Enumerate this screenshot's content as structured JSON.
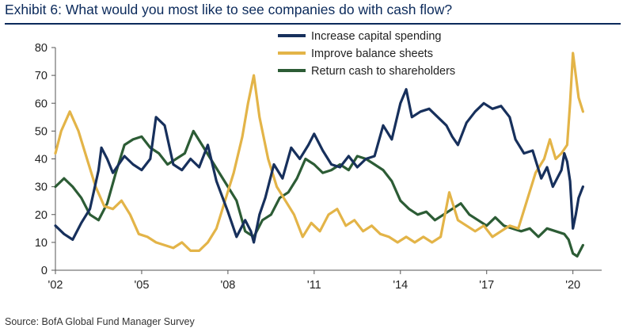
{
  "header": {
    "title": "Exhibit 6: What would you most like to see companies do with cash flow?"
  },
  "footer": {
    "source": "Source: BofA Global Fund Manager Survey"
  },
  "chart_data": {
    "type": "line",
    "title": "Exhibit 6: What would you most like to see companies do with cash flow?",
    "xlabel": "",
    "ylabel": "",
    "xlim": [
      2002.0,
      2021.0
    ],
    "ylim": [
      0,
      80
    ],
    "x_ticks": [
      "'02",
      "'05",
      "'08",
      "'11",
      "'14",
      "'17",
      "'20"
    ],
    "y_ticks": [
      0,
      10,
      20,
      30,
      40,
      50,
      60,
      70,
      80
    ],
    "grid": false,
    "legend": "top-center",
    "series": [
      {
        "name": "Increase capital spending",
        "color": "#17305c",
        "x": [
          2002.0,
          2002.3,
          2002.6,
          2002.9,
          2003.2,
          2003.5,
          2003.6,
          2003.8,
          2004.0,
          2004.4,
          2004.7,
          2005.0,
          2005.3,
          2005.5,
          2005.8,
          2006.1,
          2006.4,
          2006.7,
          2007.0,
          2007.3,
          2007.6,
          2008.0,
          2008.3,
          2008.6,
          2008.8,
          2008.9,
          2009.1,
          2009.3,
          2009.6,
          2009.9,
          2010.2,
          2010.5,
          2010.8,
          2011.0,
          2011.3,
          2011.6,
          2011.9,
          2012.2,
          2012.5,
          2012.8,
          2013.1,
          2013.4,
          2013.7,
          2014.0,
          2014.2,
          2014.4,
          2014.7,
          2015.0,
          2015.3,
          2015.6,
          2015.8,
          2016.0,
          2016.3,
          2016.6,
          2016.9,
          2017.2,
          2017.5,
          2017.8,
          2018.0,
          2018.3,
          2018.6,
          2018.9,
          2019.1,
          2019.3,
          2019.6,
          2019.7,
          2019.8,
          2019.9,
          2020.0,
          2020.1,
          2020.2,
          2020.35
        ],
        "values": [
          16,
          13,
          11,
          17,
          22,
          36,
          44,
          40,
          35,
          41,
          38,
          36,
          40,
          55,
          52,
          38,
          36,
          40,
          37,
          45,
          32,
          21,
          12,
          18,
          14,
          10,
          20,
          26,
          38,
          33,
          44,
          40,
          45,
          49,
          43,
          38,
          37,
          41,
          37,
          40,
          41,
          52,
          47,
          60,
          65,
          55,
          57,
          58,
          55,
          52,
          48,
          45,
          53,
          57,
          60,
          58,
          59,
          55,
          47,
          42,
          43,
          33,
          37,
          30,
          36,
          42,
          39,
          32,
          15,
          20,
          26,
          30
        ]
      },
      {
        "name": "Improve balance sheets",
        "color": "#e3b448",
        "x": [
          2002.0,
          2002.2,
          2002.5,
          2002.8,
          2003.1,
          2003.4,
          2003.7,
          2004.0,
          2004.3,
          2004.6,
          2004.9,
          2005.2,
          2005.5,
          2005.8,
          2006.1,
          2006.4,
          2006.7,
          2007.0,
          2007.3,
          2007.6,
          2007.9,
          2008.2,
          2008.5,
          2008.7,
          2008.9,
          2009.1,
          2009.4,
          2009.7,
          2010.0,
          2010.3,
          2010.6,
          2010.9,
          2011.2,
          2011.5,
          2011.8,
          2012.1,
          2012.4,
          2012.7,
          2013.0,
          2013.3,
          2013.6,
          2013.9,
          2014.2,
          2014.5,
          2014.8,
          2015.1,
          2015.4,
          2015.7,
          2016.0,
          2016.3,
          2016.6,
          2016.9,
          2017.2,
          2017.5,
          2017.8,
          2018.1,
          2018.4,
          2018.7,
          2019.0,
          2019.2,
          2019.4,
          2019.6,
          2019.8,
          2019.9,
          2020.0,
          2020.1,
          2020.2,
          2020.35
        ],
        "values": [
          42,
          50,
          57,
          50,
          40,
          30,
          23,
          22,
          25,
          20,
          13,
          12,
          10,
          9,
          8,
          10,
          7,
          7,
          10,
          15,
          25,
          35,
          48,
          60,
          70,
          55,
          40,
          30,
          25,
          20,
          12,
          17,
          14,
          20,
          22,
          16,
          18,
          14,
          16,
          13,
          12,
          10,
          12,
          10,
          12,
          10,
          12,
          28,
          18,
          16,
          14,
          16,
          12,
          14,
          16,
          15,
          25,
          35,
          40,
          47,
          40,
          42,
          45,
          60,
          78,
          70,
          62,
          57
        ]
      },
      {
        "name": "Return cash to shareholders",
        "color": "#2c5c35",
        "x": [
          2002.0,
          2002.3,
          2002.6,
          2002.9,
          2003.2,
          2003.5,
          2003.8,
          2004.1,
          2004.4,
          2004.7,
          2005.0,
          2005.3,
          2005.6,
          2005.9,
          2006.2,
          2006.5,
          2006.8,
          2007.1,
          2007.4,
          2007.7,
          2008.0,
          2008.3,
          2008.6,
          2008.9,
          2009.2,
          2009.5,
          2009.8,
          2010.1,
          2010.4,
          2010.7,
          2011.0,
          2011.3,
          2011.6,
          2011.9,
          2012.2,
          2012.5,
          2012.8,
          2013.1,
          2013.4,
          2013.7,
          2014.0,
          2014.3,
          2014.6,
          2014.9,
          2015.2,
          2015.5,
          2015.8,
          2016.1,
          2016.4,
          2016.7,
          2017.0,
          2017.3,
          2017.6,
          2017.9,
          2018.2,
          2018.5,
          2018.8,
          2019.1,
          2019.4,
          2019.7,
          2019.85,
          2020.0,
          2020.15,
          2020.35
        ],
        "values": [
          30,
          33,
          30,
          26,
          20,
          18,
          24,
          35,
          45,
          47,
          48,
          44,
          42,
          38,
          40,
          42,
          50,
          45,
          40,
          35,
          30,
          25,
          14,
          12,
          18,
          20,
          26,
          28,
          33,
          40,
          38,
          35,
          36,
          38,
          36,
          41,
          40,
          38,
          36,
          32,
          25,
          22,
          20,
          21,
          18,
          20,
          22,
          24,
          20,
          18,
          16,
          19,
          16,
          15,
          14,
          15,
          12,
          15,
          14,
          13,
          11,
          6,
          5,
          9
        ]
      }
    ]
  }
}
